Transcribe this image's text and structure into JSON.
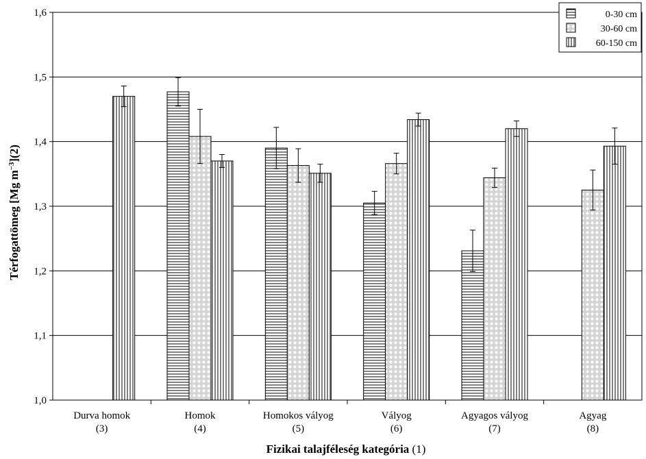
{
  "chart_data": {
    "type": "bar",
    "title": "",
    "xlabel_bold": "Fizikai talajféleség kategória",
    "xlabel_suffix": " (1)",
    "ylabel_main": "Térfogattömeg [Mg m",
    "ylabel_sup": "−3",
    "ylabel_end": "](2)",
    "ylim": [
      1.0,
      1.6
    ],
    "yticks": [
      "1,0",
      "1,1",
      "1,2",
      "1,3",
      "1,4",
      "1,5",
      "1,6"
    ],
    "grid": true,
    "legend_position": "top-right",
    "categories": [
      {
        "name": "Durva homok",
        "code": "(3)"
      },
      {
        "name": "Homok",
        "code": "(4)"
      },
      {
        "name": "Homokos vályog",
        "code": "(5)"
      },
      {
        "name": "Vályog",
        "code": "(6)"
      },
      {
        "name": "Agyagos vályog",
        "code": "(7)"
      },
      {
        "name": "Agyag",
        "code": "(8)"
      }
    ],
    "series": [
      {
        "name": "0-30 cm",
        "pattern": "horizontal-lines",
        "values": [
          null,
          1.477,
          1.39,
          1.305,
          1.231,
          null
        ],
        "errors": [
          null,
          0.022,
          0.032,
          0.018,
          0.032,
          null
        ]
      },
      {
        "name": "30-60 cm",
        "pattern": "crosshatch",
        "values": [
          null,
          1.408,
          1.363,
          1.366,
          1.344,
          1.325
        ],
        "errors": [
          null,
          0.042,
          0.026,
          0.016,
          0.015,
          0.031
        ]
      },
      {
        "name": "60-150 cm",
        "pattern": "vertical-lines",
        "values": [
          1.47,
          1.37,
          1.351,
          1.434,
          1.42,
          1.393
        ],
        "errors": [
          0.016,
          0.01,
          0.014,
          0.01,
          0.012,
          0.028
        ]
      }
    ]
  }
}
